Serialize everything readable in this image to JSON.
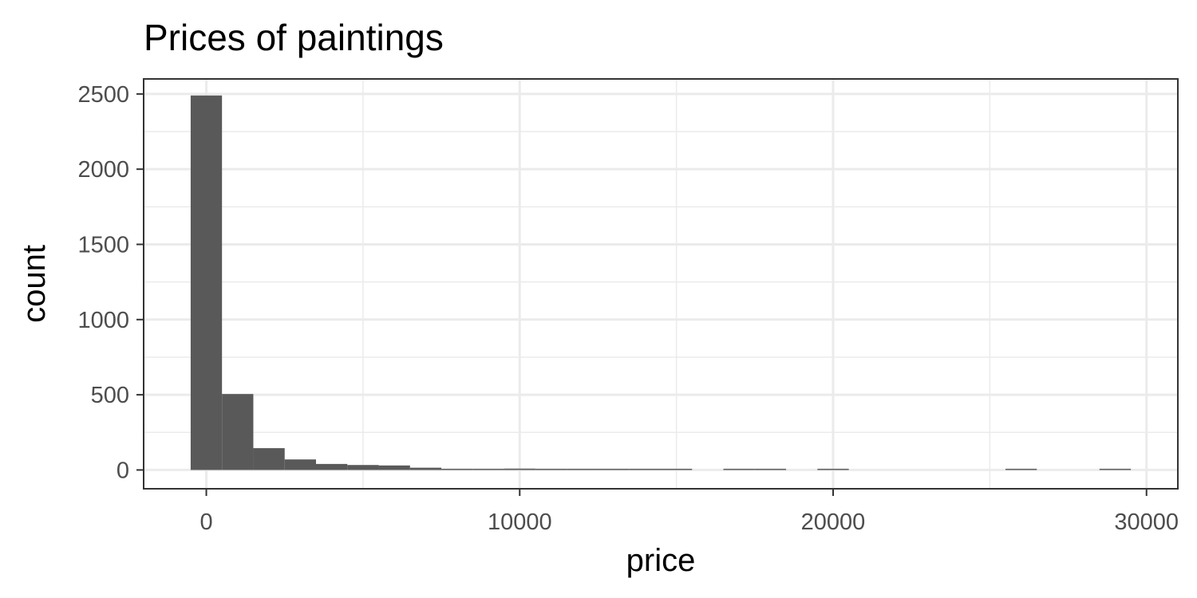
{
  "chart_data": {
    "type": "bar",
    "title": "Prices of paintings",
    "xlabel": "price",
    "ylabel": "count",
    "xlim": [
      -2000,
      31000
    ],
    "ylim": [
      -125,
      2600
    ],
    "x_ticks": [
      0,
      10000,
      20000,
      30000
    ],
    "x_tick_labels": [
      "0",
      "10000",
      "20000",
      "30000"
    ],
    "y_ticks": [
      0,
      500,
      1000,
      1500,
      2000,
      2500
    ],
    "y_tick_labels": [
      "0",
      "500",
      "1000",
      "1500",
      "2000",
      "2500"
    ],
    "bin_width": 1000,
    "bin_centers": [
      0,
      1000,
      2000,
      3000,
      4000,
      5000,
      6000,
      7000,
      8000,
      9000,
      10000,
      11000,
      12000,
      13000,
      14000,
      15000,
      16000,
      17000,
      18000,
      19000,
      20000,
      21000,
      22000,
      23000,
      24000,
      25000,
      26000,
      27000,
      28000,
      29000
    ],
    "values": [
      2490,
      505,
      145,
      70,
      40,
      33,
      30,
      15,
      8,
      6,
      9,
      3,
      5,
      2,
      2,
      2,
      0,
      2,
      2,
      0,
      2,
      0,
      0,
      0,
      0,
      0,
      1,
      0,
      0,
      1
    ],
    "grid": true,
    "colors": {
      "bar": "#595959",
      "grid": "#ebebeb",
      "border": "#333333",
      "tick_text": "#4d4d4d"
    }
  }
}
